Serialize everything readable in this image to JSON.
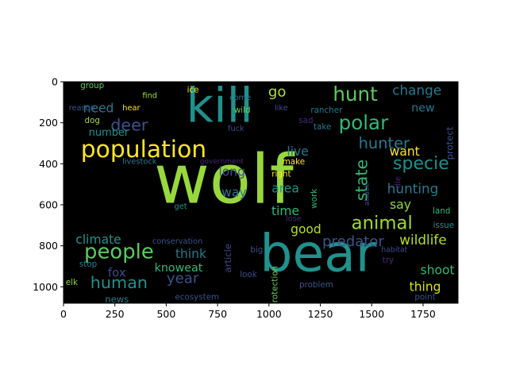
{
  "chart_data": {
    "type": "wordcloud",
    "title": "",
    "xlabel": "",
    "ylabel": "",
    "xlim": [
      0,
      1920
    ],
    "ylim": [
      1080,
      0
    ],
    "background": "#000000",
    "x_ticks": [
      0,
      250,
      500,
      750,
      1000,
      1250,
      1500,
      1750
    ],
    "y_ticks": [
      0,
      200,
      400,
      600,
      800,
      1000
    ],
    "words": [
      {
        "text": "wolf",
        "x": 780,
        "y": 480,
        "size": 330,
        "color": "#98d83e"
      },
      {
        "text": "bear",
        "x": 1240,
        "y": 840,
        "size": 250,
        "color": "#21918c"
      },
      {
        "text": "kill",
        "x": 760,
        "y": 120,
        "size": 230,
        "color": "#21918c"
      },
      {
        "text": "population",
        "x": 390,
        "y": 330,
        "size": 115,
        "color": "#fde725"
      },
      {
        "text": "hunt",
        "x": 1420,
        "y": 60,
        "size": 95,
        "color": "#5ec962"
      },
      {
        "text": "polar",
        "x": 1460,
        "y": 200,
        "size": 95,
        "color": "#35b779"
      },
      {
        "text": "people",
        "x": 270,
        "y": 830,
        "size": 100,
        "color": "#5ec962"
      },
      {
        "text": "animal",
        "x": 1550,
        "y": 690,
        "size": 88,
        "color": "#9fda3a"
      },
      {
        "text": "human",
        "x": 270,
        "y": 980,
        "size": 80,
        "color": "#21918c"
      },
      {
        "text": "specie",
        "x": 1740,
        "y": 400,
        "size": 85,
        "color": "#21918c"
      },
      {
        "text": "deer",
        "x": 320,
        "y": 210,
        "size": 80,
        "color": "#3b528b"
      },
      {
        "text": "state",
        "x": 1450,
        "y": 480,
        "size": 80,
        "color": "#35b779"
      },
      {
        "text": "hunter",
        "x": 1560,
        "y": 300,
        "size": 75,
        "color": "#2a788e"
      },
      {
        "text": "year",
        "x": 580,
        "y": 960,
        "size": 70,
        "color": "#3b528b"
      },
      {
        "text": "predator",
        "x": 1410,
        "y": 780,
        "size": 70,
        "color": "#3b528b"
      },
      {
        "text": "wildlife",
        "x": 1750,
        "y": 770,
        "size": 65,
        "color": "#b5de2b"
      },
      {
        "text": "hunting",
        "x": 1700,
        "y": 520,
        "size": 65,
        "color": "#2a788e"
      },
      {
        "text": "change",
        "x": 1720,
        "y": 40,
        "size": 65,
        "color": "#2a788e"
      },
      {
        "text": "go",
        "x": 1040,
        "y": 50,
        "size": 70,
        "color": "#b5de2b"
      },
      {
        "text": "shoot",
        "x": 1820,
        "y": 920,
        "size": 60,
        "color": "#35b779"
      },
      {
        "text": "thing",
        "x": 1760,
        "y": 1000,
        "size": 60,
        "color": "#d8e219"
      },
      {
        "text": "climate",
        "x": 170,
        "y": 770,
        "size": 60,
        "color": "#21918c"
      },
      {
        "text": "need",
        "x": 170,
        "y": 130,
        "size": 60,
        "color": "#2a788e"
      },
      {
        "text": "think",
        "x": 620,
        "y": 840,
        "size": 60,
        "color": "#2a788e"
      },
      {
        "text": "fox",
        "x": 260,
        "y": 930,
        "size": 58,
        "color": "#3e4a89"
      },
      {
        "text": "knoweat",
        "x": 560,
        "y": 910,
        "size": 55,
        "color": "#35b779"
      },
      {
        "text": "say",
        "x": 1640,
        "y": 600,
        "size": 60,
        "color": "#8fd744"
      },
      {
        "text": "want",
        "x": 1660,
        "y": 340,
        "size": 60,
        "color": "#fde725"
      },
      {
        "text": "live",
        "x": 1140,
        "y": 340,
        "size": 60,
        "color": "#2a788e"
      },
      {
        "text": "long",
        "x": 820,
        "y": 440,
        "size": 60,
        "color": "#3b528b"
      },
      {
        "text": "way",
        "x": 830,
        "y": 540,
        "size": 60,
        "color": "#2a788e"
      },
      {
        "text": "area",
        "x": 1080,
        "y": 520,
        "size": 60,
        "color": "#21918c"
      },
      {
        "text": "time",
        "x": 1080,
        "y": 630,
        "size": 60,
        "color": "#35b779"
      },
      {
        "text": "good",
        "x": 1180,
        "y": 720,
        "size": 60,
        "color": "#b5de2b"
      },
      {
        "text": "number",
        "x": 220,
        "y": 250,
        "size": 50,
        "color": "#21918c"
      },
      {
        "text": "new",
        "x": 1750,
        "y": 130,
        "size": 55,
        "color": "#2a788e"
      },
      {
        "text": "news",
        "x": 260,
        "y": 1060,
        "size": 45,
        "color": "#2a788e"
      },
      {
        "text": "protect",
        "x": 1880,
        "y": 300,
        "size": 45,
        "color": "#3b528b"
      },
      {
        "text": "article",
        "x": 800,
        "y": 860,
        "size": 45,
        "color": "#3e4a89"
      },
      {
        "text": "work",
        "x": 1220,
        "y": 570,
        "size": 40,
        "color": "#35b779"
      },
      {
        "text": "protection",
        "x": 1030,
        "y": 1000,
        "size": 40,
        "color": "#6ece58"
      },
      {
        "text": "ecosystem",
        "x": 650,
        "y": 1050,
        "size": 40,
        "color": "#3b528b"
      },
      {
        "text": "conservation",
        "x": 555,
        "y": 780,
        "size": 38,
        "color": "#3b528b"
      },
      {
        "text": "ice",
        "x": 630,
        "y": 40,
        "size": 40,
        "color": "#fde725"
      },
      {
        "text": "group",
        "x": 140,
        "y": 20,
        "size": 40,
        "color": "#5ec962"
      },
      {
        "text": "come",
        "x": 860,
        "y": 80,
        "size": 38,
        "color": "#2a788e"
      },
      {
        "text": "wild",
        "x": 870,
        "y": 140,
        "size": 40,
        "color": "#6ece58"
      },
      {
        "text": "find",
        "x": 420,
        "y": 70,
        "size": 38,
        "color": "#a0da39"
      },
      {
        "text": "hear",
        "x": 330,
        "y": 130,
        "size": 38,
        "color": "#fde725"
      },
      {
        "text": "reason",
        "x": 90,
        "y": 130,
        "size": 38,
        "color": "#3b528b"
      },
      {
        "text": "dog",
        "x": 140,
        "y": 190,
        "size": 40,
        "color": "#9fda3a"
      },
      {
        "text": "rancher",
        "x": 1280,
        "y": 140,
        "size": 40,
        "color": "#2a788e"
      },
      {
        "text": "like",
        "x": 1060,
        "y": 130,
        "size": 38,
        "color": "#3e4a89"
      },
      {
        "text": "fuck",
        "x": 840,
        "y": 230,
        "size": 38,
        "color": "#3e4a89"
      },
      {
        "text": "sad",
        "x": 1180,
        "y": 190,
        "size": 40,
        "color": "#482878"
      },
      {
        "text": "take",
        "x": 1260,
        "y": 220,
        "size": 40,
        "color": "#2a788e"
      },
      {
        "text": "livestock",
        "x": 370,
        "y": 390,
        "size": 38,
        "color": "#2a788e"
      },
      {
        "text": "government",
        "x": 770,
        "y": 390,
        "size": 35,
        "color": "#482878"
      },
      {
        "text": "make",
        "x": 1120,
        "y": 390,
        "size": 40,
        "color": "#fde725"
      },
      {
        "text": "right",
        "x": 1060,
        "y": 450,
        "size": 40,
        "color": "#fde725"
      },
      {
        "text": "attack",
        "x": 1480,
        "y": 550,
        "size": 35,
        "color": "#3e4a89"
      },
      {
        "text": "die",
        "x": 1630,
        "y": 490,
        "size": 38,
        "color": "#482878"
      },
      {
        "text": "get",
        "x": 570,
        "y": 610,
        "size": 38,
        "color": "#21918c"
      },
      {
        "text": "lose",
        "x": 1120,
        "y": 670,
        "size": 38,
        "color": "#482878"
      },
      {
        "text": "land",
        "x": 1840,
        "y": 630,
        "size": 40,
        "color": "#35b779"
      },
      {
        "text": "issue",
        "x": 1850,
        "y": 700,
        "size": 40,
        "color": "#21918c"
      },
      {
        "text": "habitat",
        "x": 1610,
        "y": 820,
        "size": 36,
        "color": "#3e4a89"
      },
      {
        "text": "try",
        "x": 1580,
        "y": 870,
        "size": 40,
        "color": "#482878"
      },
      {
        "text": "stop",
        "x": 120,
        "y": 890,
        "size": 40,
        "color": "#2a788e"
      },
      {
        "text": "elk",
        "x": 40,
        "y": 980,
        "size": 40,
        "color": "#8fd744"
      },
      {
        "text": "big",
        "x": 940,
        "y": 820,
        "size": 40,
        "color": "#3b528b"
      },
      {
        "text": "look",
        "x": 900,
        "y": 940,
        "size": 40,
        "color": "#3e4a89"
      },
      {
        "text": "problem",
        "x": 1230,
        "y": 990,
        "size": 40,
        "color": "#3b528b"
      },
      {
        "text": "point",
        "x": 1760,
        "y": 1050,
        "size": 40,
        "color": "#3b528b"
      }
    ]
  }
}
